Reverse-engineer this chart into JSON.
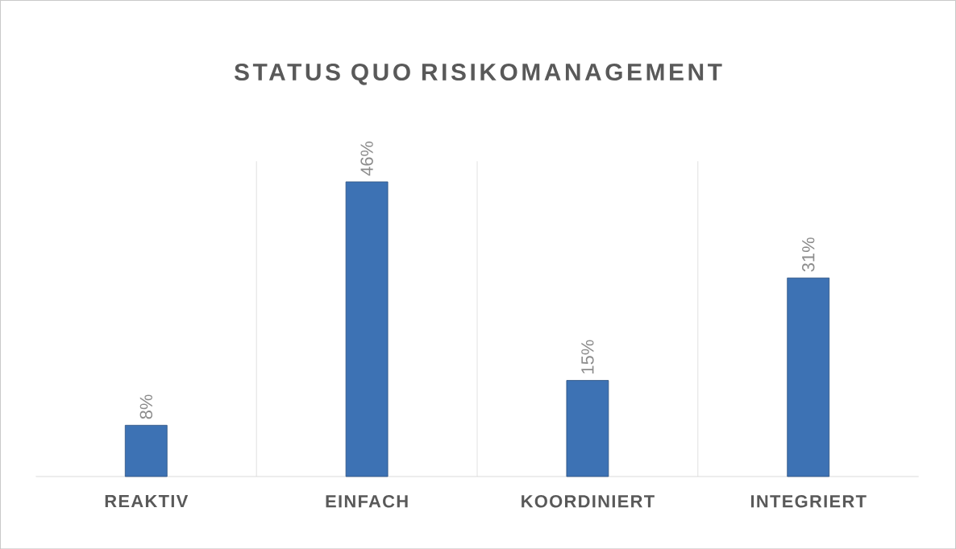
{
  "chart_data": {
    "type": "bar",
    "title": "STATUS QUO RISIKOMANAGEMENT",
    "categories": [
      "REAKTIV",
      "EINFACH",
      "KOORDINIERT",
      "INTEGRIERT"
    ],
    "values": [
      8,
      46,
      15,
      31
    ],
    "value_labels": [
      "8%",
      "46%",
      "15%",
      "31%"
    ],
    "color": "#3d72b4",
    "grid": "x"
  }
}
